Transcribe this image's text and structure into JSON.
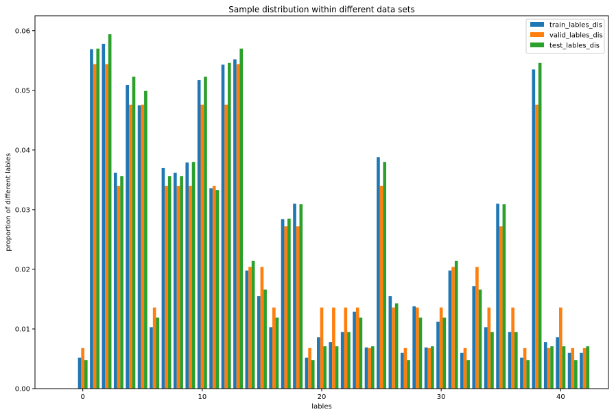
{
  "chart_data": {
    "type": "bar",
    "title": "Sample distribution within different data sets",
    "xlabel": "lables",
    "ylabel": "proportion of different lables",
    "xlim": [
      -4,
      44
    ],
    "ylim": [
      0,
      0.0625
    ],
    "xticks": [
      0,
      10,
      20,
      30,
      40
    ],
    "yticks": [
      0.0,
      0.01,
      0.02,
      0.03,
      0.04,
      0.05,
      0.06
    ],
    "ytick_labels": [
      "0.00",
      "0.01",
      "0.02",
      "0.03",
      "0.04",
      "0.05",
      "0.06"
    ],
    "legend_position": "top-right",
    "grid": false,
    "categories": [
      0,
      1,
      2,
      3,
      4,
      5,
      6,
      7,
      8,
      9,
      10,
      11,
      12,
      13,
      14,
      15,
      16,
      17,
      18,
      19,
      20,
      21,
      22,
      23,
      24,
      25,
      26,
      27,
      28,
      29,
      30,
      31,
      32,
      33,
      34,
      35,
      36,
      37,
      38,
      39,
      40,
      41,
      42
    ],
    "series": [
      {
        "name": "train_lables_dis",
        "color": "#1f77b4",
        "values": [
          0.0052,
          0.0569,
          0.0578,
          0.0362,
          0.0509,
          0.0475,
          0.0103,
          0.037,
          0.0362,
          0.0379,
          0.0517,
          0.0336,
          0.0543,
          0.0552,
          0.0198,
          0.0155,
          0.0103,
          0.0284,
          0.031,
          0.0052,
          0.0086,
          0.0078,
          0.0095,
          0.0129,
          0.0069,
          0.0388,
          0.0155,
          0.006,
          0.0138,
          0.0069,
          0.0112,
          0.0198,
          0.006,
          0.0172,
          0.0103,
          0.031,
          0.0095,
          0.0052,
          0.0535,
          0.0078,
          0.0086,
          0.006,
          0.006
        ]
      },
      {
        "name": "valid_lables_dis",
        "color": "#ff7f0e",
        "values": [
          0.0068,
          0.0544,
          0.0544,
          0.034,
          0.0476,
          0.0476,
          0.0136,
          0.034,
          0.034,
          0.034,
          0.0476,
          0.034,
          0.0476,
          0.0544,
          0.0204,
          0.0204,
          0.0136,
          0.0272,
          0.0272,
          0.0068,
          0.0136,
          0.0136,
          0.0136,
          0.0136,
          0.0068,
          0.034,
          0.0136,
          0.0068,
          0.0136,
          0.0068,
          0.0136,
          0.0204,
          0.0068,
          0.0204,
          0.0136,
          0.0272,
          0.0136,
          0.0068,
          0.0476,
          0.0068,
          0.0136,
          0.0068,
          0.0068
        ]
      },
      {
        "name": "test_lables_dis",
        "color": "#2ca02c",
        "values": [
          0.0048,
          0.057,
          0.0594,
          0.0356,
          0.0523,
          0.0499,
          0.0119,
          0.0356,
          0.0356,
          0.038,
          0.0523,
          0.0333,
          0.0546,
          0.057,
          0.0214,
          0.0166,
          0.0119,
          0.0285,
          0.0309,
          0.0048,
          0.0071,
          0.0071,
          0.0095,
          0.0119,
          0.0071,
          0.038,
          0.0143,
          0.0048,
          0.0119,
          0.0071,
          0.0119,
          0.0214,
          0.0048,
          0.0166,
          0.0095,
          0.0309,
          0.0095,
          0.0048,
          0.0546,
          0.0071,
          0.0071,
          0.0048,
          0.0071
        ]
      }
    ]
  }
}
